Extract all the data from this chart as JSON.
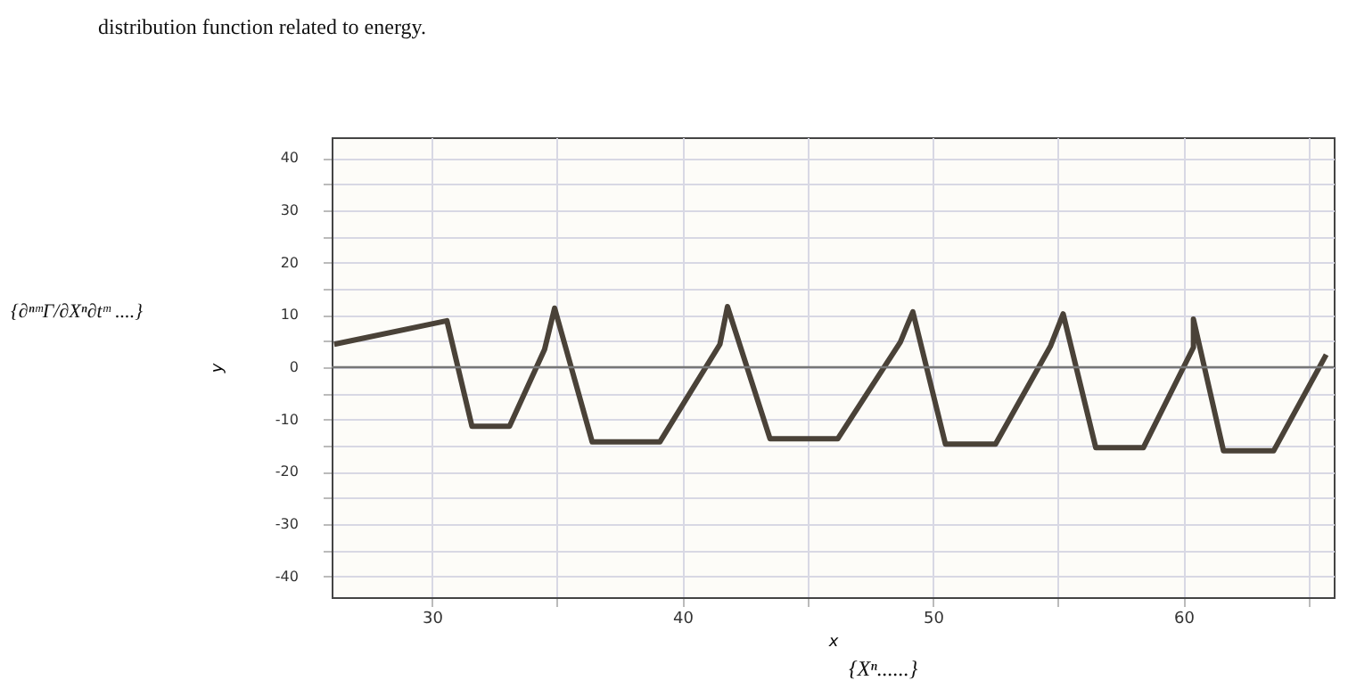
{
  "chart_data": {
    "type": "line",
    "xlabel": "x",
    "ylabel": "y",
    "annotations": [
      "distribution function related to energy.",
      "{∂ⁿᵐΓ/∂Xⁿ∂tᵐ ....}",
      "{Xⁿ......}"
    ],
    "series": [
      {
        "color": "#4a4238",
        "x": [
          26.1,
          30.6,
          31.6,
          33.1,
          34.5,
          34.9,
          36.4,
          39.1,
          41.5,
          41.8,
          43.5,
          46.2,
          48.7,
          49.2,
          50.5,
          52.5,
          54.7,
          55.2,
          56.5,
          58.4,
          60.4,
          60.4,
          61.6,
          63.6,
          65.7
        ],
        "values": [
          4.4,
          8.9,
          -11.3,
          -11.3,
          3.4,
          11.3,
          -14.3,
          -14.3,
          4.4,
          11.6,
          -13.7,
          -13.7,
          4.8,
          10.6,
          -14.7,
          -14.7,
          4.1,
          10.2,
          -15.4,
          -15.4,
          3.8,
          9.2,
          -16,
          -16,
          2.4
        ]
      }
    ],
    "xlim": [
      26,
      66
    ],
    "ylim": [
      -44,
      44
    ],
    "xticks": [
      30,
      {
        "value": 35,
        "label": null
      },
      40,
      {
        "value": 45,
        "label": null
      },
      50,
      {
        "value": 55,
        "label": null
      },
      60,
      {
        "value": 65,
        "label": null
      }
    ],
    "yticks": [
      -40,
      {
        "value": -35,
        "label": null
      },
      -30,
      {
        "value": -25,
        "label": null
      },
      -20,
      {
        "value": -15,
        "label": null
      },
      -10,
      {
        "value": -5,
        "label": null
      },
      0,
      {
        "value": 5,
        "label": null
      },
      10,
      {
        "value": 15,
        "label": null
      },
      20,
      {
        "value": 25,
        "label": null
      },
      30,
      {
        "value": 35,
        "label": null
      },
      40
    ],
    "ref_lines": [
      {
        "axis": "y",
        "value": 0,
        "color": "#777777"
      }
    ],
    "grid": true,
    "legend": false,
    "marker": "none",
    "line_style": "solid"
  }
}
